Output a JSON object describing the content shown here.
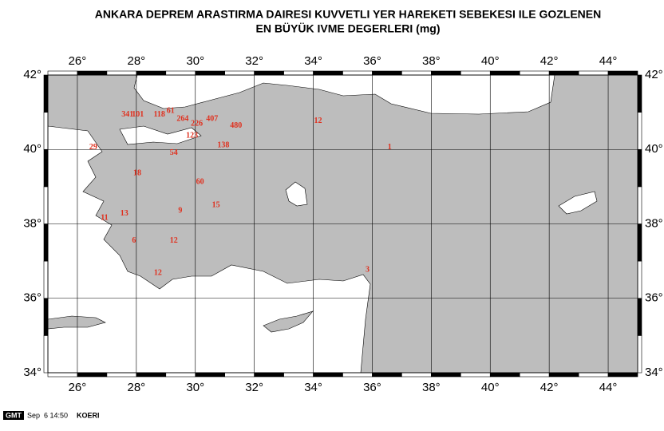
{
  "header": {
    "title_line1": "ANKARA DEPREM ARASTIRMA DAIRESI KUVVETLI YER HAREKETI SEBEKESI ILE GOZLENEN",
    "title_line2": "EN BÜYÜK IVME DEGERLERI (mg)"
  },
  "map": {
    "xlim": [
      25,
      45
    ],
    "ylim": [
      34,
      42
    ],
    "xticks": [
      {
        "value": 26,
        "label": "26°"
      },
      {
        "value": 28,
        "label": "28°"
      },
      {
        "value": 30,
        "label": "30°"
      },
      {
        "value": 32,
        "label": "32°"
      },
      {
        "value": 34,
        "label": "34°"
      },
      {
        "value": 36,
        "label": "36°"
      },
      {
        "value": 38,
        "label": "38°"
      },
      {
        "value": 40,
        "label": "40°"
      },
      {
        "value": 42,
        "label": "42°"
      },
      {
        "value": 44,
        "label": "44°"
      }
    ],
    "yticks": [
      {
        "value": 34,
        "label": "34°"
      },
      {
        "value": 36,
        "label": "36°"
      },
      {
        "value": 38,
        "label": "38°"
      },
      {
        "value": 40,
        "label": "40°"
      },
      {
        "value": 42,
        "label": "42°"
      }
    ],
    "stations": [
      {
        "lon": 27.7,
        "lat": 40.93,
        "value": 341
      },
      {
        "lon": 28.05,
        "lat": 40.93,
        "value": 101
      },
      {
        "lon": 28.78,
        "lat": 40.93,
        "value": 118
      },
      {
        "lon": 29.16,
        "lat": 41.03,
        "value": 61
      },
      {
        "lon": 29.57,
        "lat": 40.82,
        "value": 264
      },
      {
        "lon": 30.05,
        "lat": 40.69,
        "value": 226
      },
      {
        "lon": 30.57,
        "lat": 40.82,
        "value": 407
      },
      {
        "lon": 31.38,
        "lat": 40.63,
        "value": 480
      },
      {
        "lon": 34.16,
        "lat": 40.76,
        "value": 12
      },
      {
        "lon": 36.59,
        "lat": 40.05,
        "value": 1
      },
      {
        "lon": 26.54,
        "lat": 40.05,
        "value": 29
      },
      {
        "lon": 29.89,
        "lat": 40.37,
        "value": 123
      },
      {
        "lon": 29.27,
        "lat": 39.9,
        "value": 54
      },
      {
        "lon": 30.95,
        "lat": 40.11,
        "value": 138
      },
      {
        "lon": 28.03,
        "lat": 39.36,
        "value": 18
      },
      {
        "lon": 30.16,
        "lat": 39.12,
        "value": 60
      },
      {
        "lon": 29.49,
        "lat": 38.35,
        "value": 9
      },
      {
        "lon": 30.7,
        "lat": 38.5,
        "value": 15
      },
      {
        "lon": 27.59,
        "lat": 38.27,
        "value": 13
      },
      {
        "lon": 26.92,
        "lat": 38.16,
        "value": 11
      },
      {
        "lon": 27.92,
        "lat": 37.54,
        "value": 6
      },
      {
        "lon": 29.27,
        "lat": 37.54,
        "value": 12
      },
      {
        "lon": 28.73,
        "lat": 36.68,
        "value": 12
      },
      {
        "lon": 35.84,
        "lat": 36.76,
        "value": 3
      }
    ]
  },
  "footer": {
    "logo": "GMT",
    "timestamp": "Sep  6 14:50",
    "source": "KOERI"
  }
}
